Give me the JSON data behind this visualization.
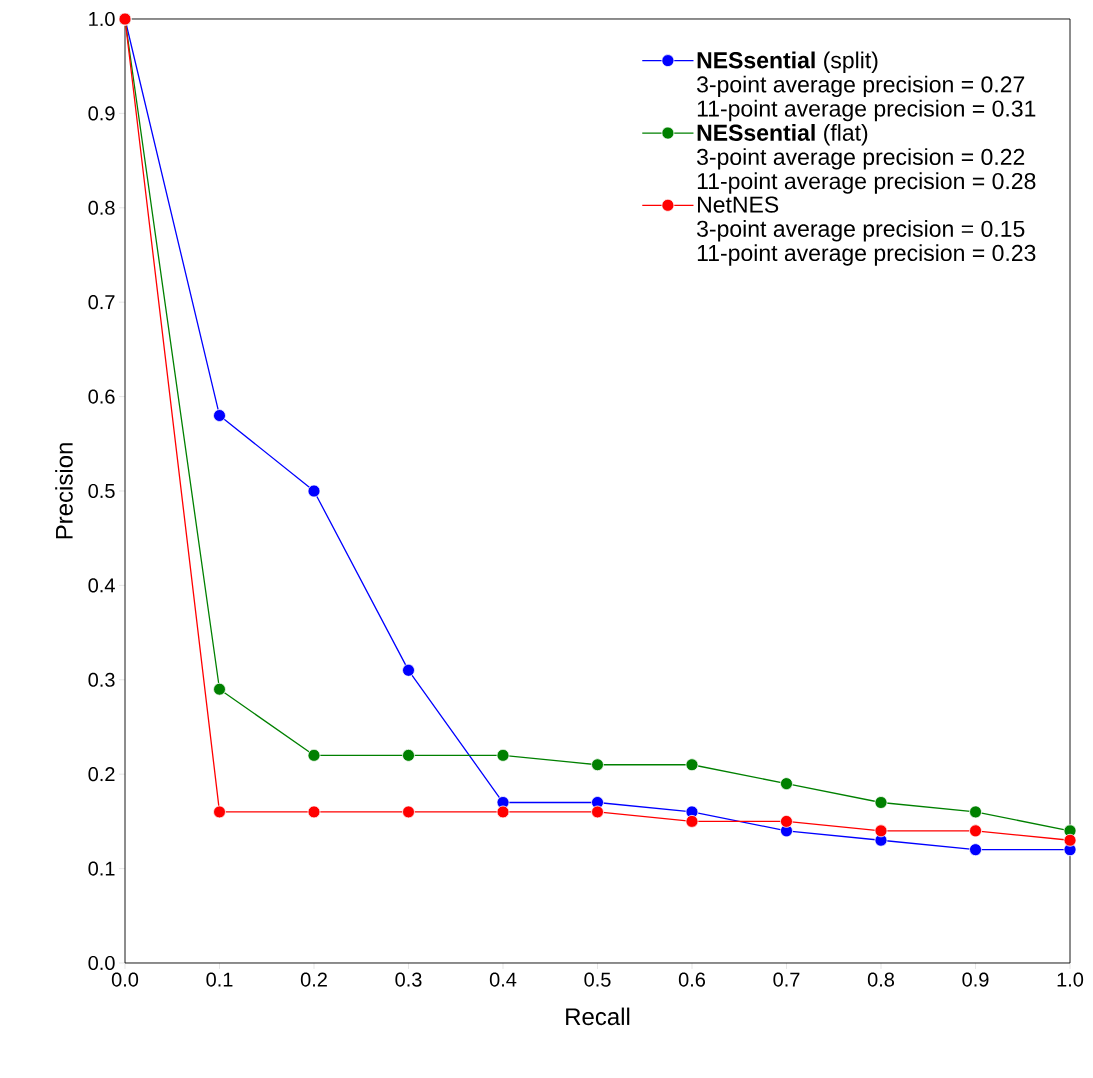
{
  "chart_data": {
    "type": "line",
    "xlabel": "Recall",
    "ylabel": "Precision",
    "x": [
      0.0,
      0.1,
      0.2,
      0.3,
      0.4,
      0.5,
      0.6,
      0.7,
      0.8,
      0.9,
      1.0
    ],
    "series": [
      {
        "name": "**NESsential** (split)",
        "color": "#0000ff",
        "values": [
          1.0,
          0.58,
          0.5,
          0.31,
          0.17,
          0.17,
          0.16,
          0.14,
          0.13,
          0.12,
          0.12
        ]
      },
      {
        "name": "**NESsential** (flat)",
        "color": "#008000",
        "values": [
          1.0,
          0.29,
          0.22,
          0.22,
          0.22,
          0.21,
          0.21,
          0.19,
          0.17,
          0.16,
          0.14
        ]
      },
      {
        "name": "NetNES",
        "color": "#ff0000",
        "values": [
          1.0,
          0.16,
          0.16,
          0.16,
          0.16,
          0.16,
          0.15,
          0.15,
          0.14,
          0.14,
          0.13
        ]
      }
    ],
    "annotations": [
      "3-point average precision = 0.27",
      "11-point average precision = 0.31",
      "3-point average precision = 0.22",
      "11-point average precision = 0.28",
      "3-point average precision = 0.15",
      "11-point average precision = 0.23"
    ],
    "xlim": [
      0.0,
      1.0
    ],
    "ylim": [
      0.0,
      1.0
    ],
    "xticks": [
      {
        "value": 0,
        "label": "0.0"
      },
      0.1,
      0.2,
      0.3,
      0.4,
      0.5,
      0.6,
      0.7,
      0.8,
      0.9,
      {
        "value": 1,
        "label": "1.0"
      }
    ],
    "yticks": [
      {
        "value": 0,
        "label": "0.0"
      },
      0.1,
      0.2,
      0.3,
      0.4,
      0.5,
      0.6,
      0.7,
      0.8,
      0.9,
      {
        "value": 1,
        "label": "1.0"
      }
    ],
    "grid": false,
    "legend": "top right",
    "marker": "circle",
    "line_style": "solid"
  }
}
